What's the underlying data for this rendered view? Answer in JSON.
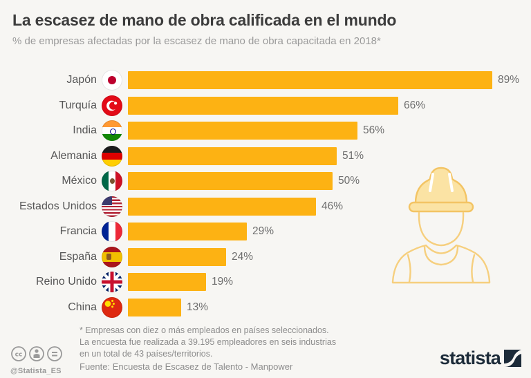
{
  "header": {
    "title": "La escasez de mano de obra calificada en el mundo",
    "subtitle": "% de empresas afectadas por la escasez de mano de obra capacitada en 2018*"
  },
  "chart_data": {
    "type": "bar",
    "orientation": "horizontal",
    "title": "La escasez de mano de obra calificada en el mundo",
    "subtitle": "% de empresas afectadas por la escasez de mano de obra capacitada en 2018*",
    "categories": [
      "Japón",
      "Turquía",
      "India",
      "Alemania",
      "México",
      "Estados Unidos",
      "Francia",
      "España",
      "Reino Unido",
      "China"
    ],
    "values": [
      89,
      66,
      56,
      51,
      50,
      46,
      29,
      24,
      19,
      13
    ],
    "value_suffix": "%",
    "xlim": [
      0,
      89
    ],
    "grid": false,
    "legend": false,
    "bar_color": "#FDB213",
    "flags": [
      "jp",
      "tr",
      "in",
      "de",
      "mx",
      "us",
      "fr",
      "es",
      "gb",
      "cn"
    ]
  },
  "footer": {
    "note_lines": [
      "* Empresas con diez o más empleados en países seleccionados.",
      "La encuesta fue realizada a 39.195 empleadores en seis industrias",
      "en un total de 43 países/territorios."
    ],
    "source": "Fuente: Encuesta de Escasez de Talento - Manpower"
  },
  "branding": {
    "logo_text": "statista",
    "handle": "@Statista_ES",
    "license_icons": [
      "cc",
      "by",
      "nd"
    ]
  },
  "colors": {
    "background": "#F7F6F3",
    "bar": "#FDB213",
    "title_text": "#3C3C3C",
    "subtitle_text": "#9A9A9A",
    "worker_outline": "#F6CF7E",
    "statista_navy": "#1C2B39"
  }
}
